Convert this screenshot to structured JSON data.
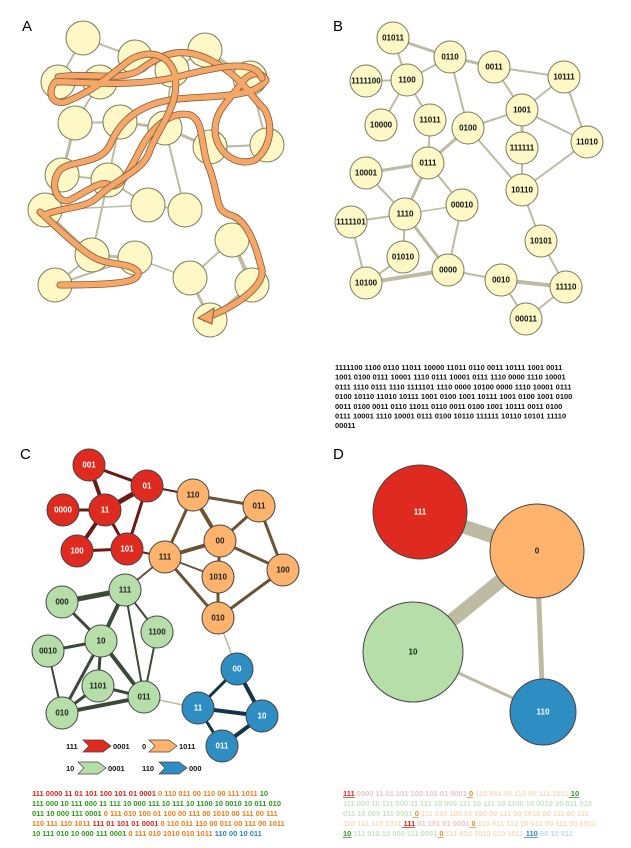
{
  "panels": {
    "a": {
      "label": "A"
    },
    "b": {
      "label": "B"
    },
    "c": {
      "label": "C"
    },
    "d": {
      "label": "D"
    }
  },
  "colors": {
    "node_fill": "#fdf8c6",
    "node_stroke": "#7b7a5c",
    "edge": "#bdbba2",
    "path": "#f4a766",
    "path_outline": "#8a5a3a",
    "red": "#df2a20",
    "orange": "#fdb36b",
    "green": "#b6dea9",
    "blue": "#2e8ec4",
    "red_edge": "#6b1a14",
    "orange_edge": "#6e5234",
    "green_edge": "#3a4a36",
    "blue_edge": "#14324a",
    "label_dark": "#222222",
    "label_light": "#ffffff"
  },
  "panel_b": {
    "nodes": [
      "01011",
      "0110",
      "0011",
      "1111100",
      "1100",
      "10111",
      "1001",
      "10000",
      "11011",
      "0100",
      "111111",
      "11010",
      "0111",
      "10001",
      "10110",
      "00010",
      "1111101",
      "1110",
      "10101",
      "01010",
      "0000",
      "0010",
      "11110",
      "10100",
      "00011"
    ],
    "sequence_lines": [
      "1111100 1100 0110 11011  10000 11011 0110 0011  10111  1001  0011",
      "1001  0100  0111  10001  1110  0111  10001  0111  1110  0000  1110  10001",
      "0111  1110  0111  1110  1111101  1110  0000  10100  0000  1110  10001  0111",
      "0100  10110  11010  10111  1001  0100  1001  10111  1001  0100  1001  0100",
      "0011  0100  0011  0110  11011  0110  0011  0100  1001  10111  0011  0100",
      "0111  10001  1110  10001  0111  0100  10110  111111  10110  10101  11110",
      "00011"
    ]
  },
  "panel_c": {
    "nodes": {
      "red": [
        "001",
        "01",
        "0000",
        "11",
        "100",
        "101"
      ],
      "orange": [
        "110",
        "011",
        "111",
        "00",
        "1010",
        "100",
        "010"
      ],
      "green": [
        "000",
        "111",
        "1100",
        "0010",
        "10",
        "1101",
        "011",
        "010"
      ],
      "blue": [
        "00",
        "11",
        "10",
        "011"
      ]
    },
    "legend": [
      {
        "from": "111",
        "to": "0001",
        "color": "red"
      },
      {
        "from": "0",
        "to": "1011",
        "color": "orange"
      },
      {
        "from": "10",
        "to": "0001",
        "color": "green"
      },
      {
        "from": "110",
        "to": "000",
        "color": "blue"
      }
    ],
    "sequence_lines": [
      [
        {
          "t": "111 0000 11 01 101 100 101 01 0001",
          "c": "red"
        },
        {
          "t": " 0 110 011 00 110 00 111 1011",
          "c": "orange"
        },
        {
          "t": " 10",
          "c": "green"
        }
      ],
      [
        {
          "t": "111 000 10 111 000 11 111 10 000 111 10 111 10 1100 10 0010 10 011 010",
          "c": "green"
        }
      ],
      [
        {
          "t": "011 10 000 111 0001",
          "c": "green"
        },
        {
          "t": " 0 111 010 100 01 100 00 111 00 1010 00 111 00 111",
          "c": "orange"
        }
      ],
      [
        {
          "t": "110 111 110 1011",
          "c": "orange"
        },
        {
          "t": " 111 01 101 01 0001",
          "c": "red"
        },
        {
          "t": " 0 110 011 110 00 011 00 111 00 1011",
          "c": "orange"
        }
      ],
      [
        {
          "t": "10 111 010 10 000 111 0001",
          "c": "green"
        },
        {
          "t": " 0 111 010 1010 010 1011",
          "c": "orange"
        },
        {
          "t": " 110 00 10 011",
          "c": "blue"
        }
      ]
    ]
  },
  "panel_d": {
    "nodes": [
      {
        "label": "111",
        "color": "red"
      },
      {
        "label": "0",
        "color": "orange"
      },
      {
        "label": "10",
        "color": "green"
      },
      {
        "label": "110",
        "color": "blue"
      }
    ],
    "sequence_lines": [
      [
        {
          "t": "111",
          "c": "red",
          "hl": true
        },
        {
          "t": " 0000 11 01 101 100 101 01 0001",
          "c": "red",
          "hl": false
        },
        {
          "t": " 0",
          "c": "orange",
          "hl": true
        },
        {
          "t": " 110 011 00 110 00 111 1011",
          "c": "orange",
          "hl": false
        },
        {
          "t": " 10",
          "c": "green",
          "hl": true
        }
      ],
      [
        {
          "t": "111 000 10 111 000 11 111 10 000 111 10 111 10 1100 10 0010 10 011 010",
          "c": "green",
          "hl": false
        }
      ],
      [
        {
          "t": "011 10 000 111 0001",
          "c": "green",
          "hl": false
        },
        {
          "t": " 0",
          "c": "orange",
          "hl": true
        },
        {
          "t": " 111 010 100 01 100 00 111 00 1010 00 111 00 111",
          "c": "orange",
          "hl": false
        }
      ],
      [
        {
          "t": "110 111 110 1011",
          "c": "orange",
          "hl": false
        },
        {
          "t": " 111",
          "c": "red",
          "hl": true
        },
        {
          "t": " 01 101 01 0001",
          "c": "red",
          "hl": false
        },
        {
          "t": " 0",
          "c": "orange",
          "hl": true
        },
        {
          "t": " 110 011 110 00 011 00 111 00 1011",
          "c": "orange",
          "hl": false
        }
      ],
      [
        {
          "t": "10",
          "c": "green",
          "hl": true
        },
        {
          "t": " 111 010 10 000 111 0001",
          "c": "green",
          "hl": false
        },
        {
          "t": " 0",
          "c": "orange",
          "hl": true
        },
        {
          "t": " 111 010 1010 010 1011",
          "c": "orange",
          "hl": false
        },
        {
          "t": " 110",
          "c": "blue",
          "hl": true
        },
        {
          "t": " 00 10 011",
          "c": "blue",
          "hl": false
        }
      ]
    ]
  }
}
